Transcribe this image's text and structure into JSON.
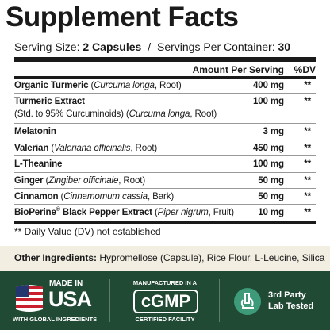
{
  "header": {
    "title": "Supplement Facts",
    "serving_size_label": "Serving Size:",
    "serving_size": "2 Capsules",
    "separator": "/",
    "servings_label": "Servings Per Container:",
    "servings": "30"
  },
  "table": {
    "columns": [
      "Amount Per Serving",
      "%DV"
    ],
    "rows": [
      {
        "lines": [
          [
            {
              "text": "Organic Turmeric",
              "style": "bold"
            },
            {
              "text": " (",
              "style": "normal"
            },
            {
              "text": "Curcuma longa",
              "style": "italic"
            },
            {
              "text": ", Root)",
              "style": "normal"
            }
          ]
        ],
        "amount": "400 mg",
        "dv": "**"
      },
      {
        "lines": [
          [
            {
              "text": "Turmeric Extract",
              "style": "bold"
            }
          ],
          [
            {
              "text": "(Std. to 95% Curcuminoids) (",
              "style": "normal"
            },
            {
              "text": "Curcuma longa",
              "style": "italic"
            },
            {
              "text": ", Root)",
              "style": "normal"
            }
          ]
        ],
        "amount": "100 mg",
        "dv": "**"
      },
      {
        "lines": [
          [
            {
              "text": "Melatonin",
              "style": "bold"
            }
          ]
        ],
        "amount": "3 mg",
        "dv": "**"
      },
      {
        "lines": [
          [
            {
              "text": "Valerian",
              "style": "bold"
            },
            {
              "text": " (",
              "style": "normal"
            },
            {
              "text": "Valeriana officinalis",
              "style": "italic"
            },
            {
              "text": ", Root)",
              "style": "normal"
            }
          ]
        ],
        "amount": "450 mg",
        "dv": "**"
      },
      {
        "lines": [
          [
            {
              "text": "L-Theanine",
              "style": "bold"
            }
          ]
        ],
        "amount": "100 mg",
        "dv": "**"
      },
      {
        "lines": [
          [
            {
              "text": "Ginger",
              "style": "bold"
            },
            {
              "text": " (",
              "style": "normal"
            },
            {
              "text": "Zingiber officinale",
              "style": "italic"
            },
            {
              "text": ", Root)",
              "style": "normal"
            }
          ]
        ],
        "amount": "50 mg",
        "dv": "**"
      },
      {
        "lines": [
          [
            {
              "text": "Cinnamon",
              "style": "bold"
            },
            {
              "text": " (",
              "style": "normal"
            },
            {
              "text": "Cinnamomum cassia",
              "style": "italic"
            },
            {
              "text": ", Bark)",
              "style": "normal"
            }
          ]
        ],
        "amount": "50 mg",
        "dv": "**"
      },
      {
        "lines": [
          [
            {
              "text": "BioPerine",
              "style": "bold"
            },
            {
              "text": "®",
              "style": "sup"
            },
            {
              "text": " Black Pepper Extract",
              "style": "bold"
            },
            {
              "text": " (",
              "style": "normal"
            },
            {
              "text": "Piper nigrum",
              "style": "italic"
            },
            {
              "text": ", Fruit)",
              "style": "normal"
            }
          ]
        ],
        "amount": "10 mg",
        "dv": "**"
      }
    ]
  },
  "footnote": "** Daily Value (DV) not established",
  "other_ingredients": {
    "label": "Other Ingredients:",
    "text": "Hypromellose (Capsule), Rice Flour, L-Leucine, Silica"
  },
  "badges": [
    {
      "lines": [
        "MADE IN",
        "USA",
        "WITH GLOBAL INGREDIENTS"
      ]
    },
    {
      "lines": [
        "MANUFACTURED IN A",
        "cGMP",
        "CERTIFIED FACILITY"
      ]
    },
    {
      "lines": [
        "3rd Party",
        "Lab Tested"
      ]
    }
  ]
}
